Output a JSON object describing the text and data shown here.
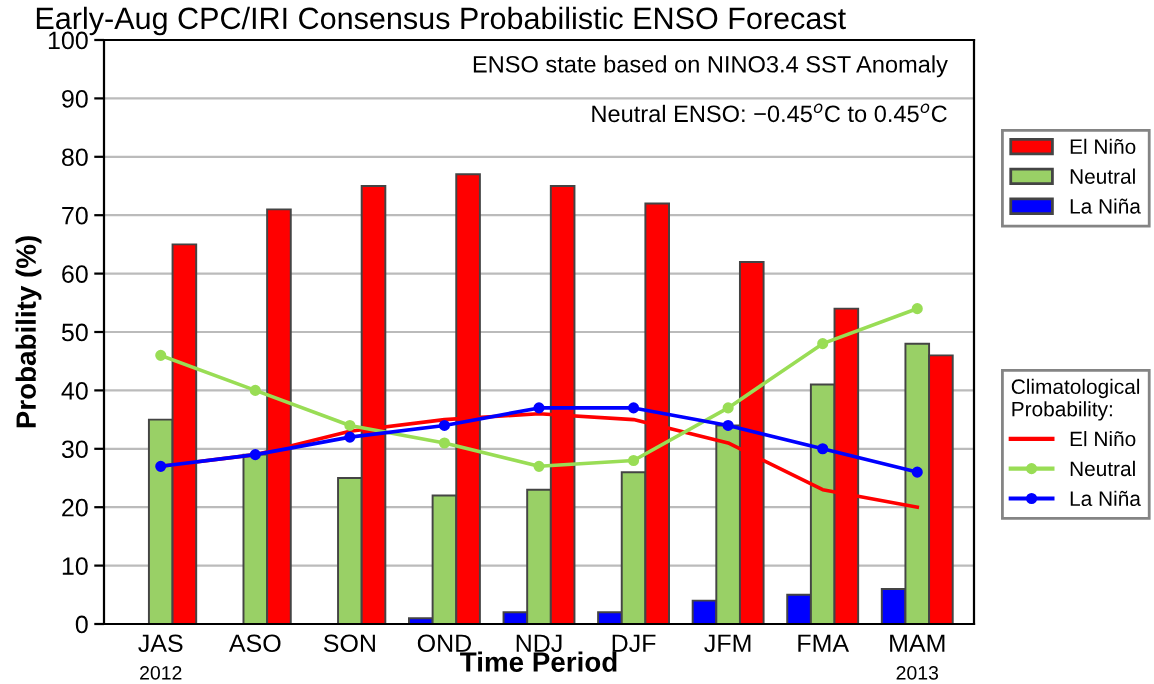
{
  "chart_data": {
    "type": "bar",
    "title": "Early-Aug CPC/IRI Consensus Probabilistic ENSO Forecast",
    "xlabel": "Time Period",
    "ylabel": "Probability (%)",
    "legend_title": "Climatological\nProbability:",
    "categories": [
      "JAS",
      "ASO",
      "SON",
      "OND",
      "NDJ",
      "DJF",
      "JFM",
      "FMA",
      "MAM"
    ],
    "series": [
      {
        "name": "La Niña",
        "color": "#0000ff",
        "values": [
          0,
          0,
          0,
          1,
          2,
          2,
          4,
          5,
          6
        ]
      },
      {
        "name": "Neutral",
        "color": "#99d066",
        "values": [
          35,
          29,
          25,
          22,
          23,
          26,
          34,
          41,
          48
        ]
      },
      {
        "name": "El Niño",
        "color": "#ff0000",
        "values": [
          65,
          71,
          75,
          77,
          75,
          72,
          62,
          54,
          46
        ]
      },
      {
        "name": "El Niño",
        "color": "#ff0000",
        "type": "line",
        "marker": "none",
        "values": [
          27,
          29,
          33,
          35,
          36,
          35,
          31,
          23,
          20
        ]
      },
      {
        "name": "Neutral",
        "color": "#99dd55",
        "type": "line",
        "marker": "circle",
        "values": [
          46,
          40,
          34,
          31,
          27,
          28,
          37,
          48,
          54
        ]
      },
      {
        "name": "La Niña",
        "color": "#0000ff",
        "type": "line",
        "marker": "circle",
        "values": [
          27,
          29,
          32,
          34,
          37,
          37,
          34,
          30,
          26
        ]
      }
    ],
    "ylim": [
      0,
      100
    ],
    "yticks": [
      0,
      10,
      20,
      30,
      40,
      50,
      60,
      70,
      80,
      90,
      100
    ],
    "grid": "y",
    "legend": "right",
    "annotations": [
      "ENSO state based on NINO3.4 SST Anomaly",
      "Neutral ENSO: −0.45$^{o}$C to 0.45$^{o}$C",
      "2012",
      "2013"
    ]
  }
}
